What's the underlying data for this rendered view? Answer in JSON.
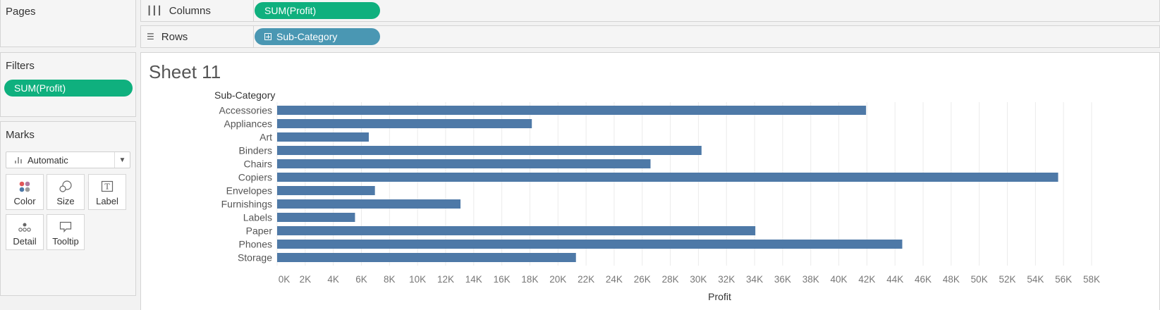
{
  "pages_card": {
    "title": "Pages"
  },
  "filters_card": {
    "title": "Filters",
    "pill": "SUM(Profit)"
  },
  "marks_card": {
    "title": "Marks",
    "mark_type": "Automatic",
    "buttons": {
      "color": "Color",
      "size": "Size",
      "label": "Label",
      "detail": "Detail",
      "tooltip": "Tooltip"
    }
  },
  "columns_shelf": {
    "label": "Columns",
    "icon": "columns-icon",
    "pill": "SUM(Profit)"
  },
  "rows_shelf": {
    "label": "Rows",
    "icon": "rows-icon",
    "pill": "Sub-Category"
  },
  "colors": {
    "green_pill": "#0fb07e",
    "blue_pill": "#4a97b3",
    "bar": "#4e79a7",
    "grid": "#ebebeb"
  },
  "sheet": {
    "title": "Sheet 11"
  },
  "chart_data": {
    "type": "bar",
    "orientation": "horizontal",
    "row_header": "Sub-Category",
    "xlabel": "Profit",
    "xlim": [
      0,
      58000
    ],
    "x_ticks": [
      "0K",
      "2K",
      "4K",
      "6K",
      "8K",
      "10K",
      "12K",
      "14K",
      "16K",
      "18K",
      "20K",
      "22K",
      "24K",
      "26K",
      "28K",
      "30K",
      "32K",
      "34K",
      "36K",
      "38K",
      "40K",
      "42K",
      "44K",
      "46K",
      "48K",
      "50K",
      "52K",
      "54K",
      "56K",
      "58K"
    ],
    "categories": [
      "Accessories",
      "Appliances",
      "Art",
      "Binders",
      "Chairs",
      "Copiers",
      "Envelopes",
      "Furnishings",
      "Labels",
      "Paper",
      "Phones",
      "Storage"
    ],
    "values": [
      41937,
      18138,
      6528,
      30222,
      26590,
      55618,
      6964,
      13059,
      5546,
      34054,
      44516,
      21279
    ],
    "grid": true
  }
}
